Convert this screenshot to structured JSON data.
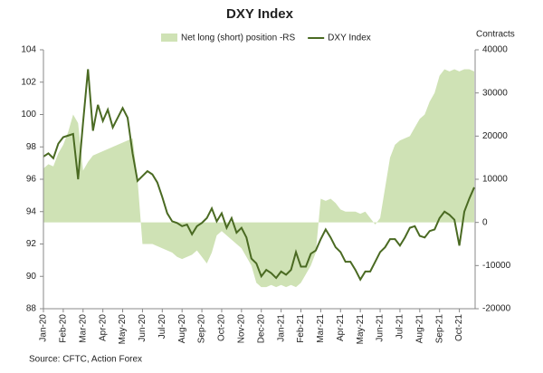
{
  "chart_data": {
    "type": "line",
    "title": "DXY Index",
    "y2label": "Contracts",
    "source": "Source: CFTC, Action Forex",
    "categories": [
      "Jan-20",
      null,
      null,
      null,
      "Feb-20",
      null,
      null,
      null,
      "Mar-20",
      null,
      null,
      null,
      "Apr-20",
      null,
      null,
      null,
      "May-20",
      null,
      null,
      null,
      "Jun-20",
      null,
      null,
      null,
      "Jul-20",
      null,
      null,
      null,
      "Aug-20",
      null,
      null,
      null,
      "Sep-20",
      null,
      null,
      null,
      "Oct-20",
      null,
      null,
      null,
      "Nov-20",
      null,
      null,
      null,
      "Dec-20",
      null,
      null,
      null,
      "Jan-21",
      null,
      null,
      null,
      "Feb-21",
      null,
      null,
      null,
      "Mar-21",
      null,
      null,
      null,
      "Apr-21",
      null,
      null,
      null,
      "May-21",
      null,
      null,
      null,
      "Jun-21",
      null,
      null,
      null,
      "Jul-21",
      null,
      null,
      null,
      "Aug-21",
      null,
      null,
      null,
      "Sep-21",
      null,
      null,
      null,
      "Oct-21",
      null,
      null,
      null
    ],
    "series": [
      {
        "name": "Net long (short) position -RS",
        "type": "area",
        "axis": "y2",
        "color": "#cfe2b5",
        "values": [
          12500,
          13500,
          13000,
          16000,
          18000,
          21000,
          25000,
          23000,
          12000,
          14000,
          15500,
          16000,
          16500,
          17000,
          17500,
          18000,
          18500,
          19000,
          19500,
          10000,
          -5000,
          -5000,
          -5000,
          -5500,
          -6000,
          -6500,
          -7000,
          -8000,
          -8500,
          -8000,
          -7500,
          -6500,
          -8000,
          -9500,
          -7000,
          -3000,
          -2000,
          -3000,
          -4000,
          -5000,
          -6000,
          -8000,
          -10000,
          -14000,
          -15000,
          -15000,
          -14500,
          -15000,
          -14500,
          -15000,
          -14500,
          -15000,
          -14000,
          -12000,
          -10000,
          -7000,
          5500,
          5000,
          5500,
          4500,
          3000,
          2500,
          2500,
          2500,
          2000,
          2500,
          1000,
          -500,
          1000,
          8000,
          15000,
          18000,
          19000,
          19500,
          20000,
          22000,
          24000,
          25000,
          28000,
          30000,
          34000,
          35500,
          35000,
          35500,
          35000,
          35500,
          35500,
          35000
        ]
      },
      {
        "name": "DXY Index",
        "type": "line",
        "axis": "y",
        "color": "#4a6a22",
        "values": [
          97.4,
          97.6,
          97.3,
          98.2,
          98.6,
          98.7,
          98.8,
          96.0,
          99.5,
          102.8,
          99.0,
          100.6,
          99.6,
          100.3,
          99.2,
          99.8,
          100.4,
          99.8,
          97.6,
          95.9,
          96.2,
          96.5,
          96.3,
          95.8,
          94.9,
          93.9,
          93.4,
          93.3,
          93.1,
          93.2,
          92.6,
          93.1,
          93.3,
          93.6,
          94.2,
          93.4,
          93.9,
          93.0,
          93.6,
          92.7,
          93.0,
          92.4,
          91.1,
          90.8,
          90.0,
          90.4,
          90.2,
          89.9,
          90.3,
          90.1,
          90.4,
          91.5,
          90.6,
          90.6,
          91.4,
          91.6,
          92.3,
          92.9,
          92.4,
          91.8,
          91.5,
          90.9,
          90.9,
          90.4,
          89.8,
          90.3,
          90.3,
          90.9,
          91.5,
          91.8,
          92.3,
          92.3,
          91.9,
          92.4,
          93.0,
          93.1,
          92.5,
          92.4,
          92.8,
          92.9,
          93.6,
          94.0,
          93.8,
          93.5,
          91.9,
          94.0,
          94.8,
          95.5
        ]
      }
    ],
    "ylim": [
      88,
      104
    ],
    "yticks": [
      88,
      90,
      92,
      94,
      96,
      98,
      100,
      102,
      104
    ],
    "y2lim": [
      -20000,
      40000
    ],
    "y2ticks": [
      -20000,
      -10000,
      0,
      10000,
      20000,
      30000,
      40000
    ]
  }
}
